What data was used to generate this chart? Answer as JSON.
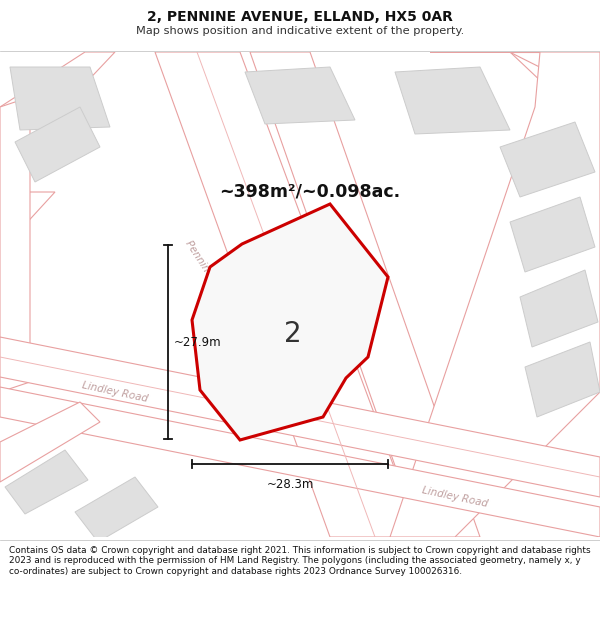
{
  "title": "2, PENNINE AVENUE, ELLAND, HX5 0AR",
  "subtitle": "Map shows position and indicative extent of the property.",
  "footer": "Contains OS data © Crown copyright and database right 2021. This information is subject to Crown copyright and database rights 2023 and is reproduced with the permission of HM Land Registry. The polygons (including the associated geometry, namely x, y co-ordinates) are subject to Crown copyright and database rights 2023 Ordnance Survey 100026316.",
  "area_label": "~398m²/~0.098ac.",
  "width_label": "~28.3m",
  "height_label": "~27.9m",
  "plot_number": "2",
  "map_bg": "#f2f2f2",
  "road_fill": "#ffffff",
  "road_edge": "#e8a0a0",
  "road_center": "#f0b8b8",
  "building_fill": "#e0e0e0",
  "building_edge": "#cccccc",
  "plot_fill": "#f5f5f5",
  "plot_stroke": "#cc0000",
  "road_label_color": "#c0a0a0",
  "dim_color": "#111111",
  "title_color": "#111111"
}
